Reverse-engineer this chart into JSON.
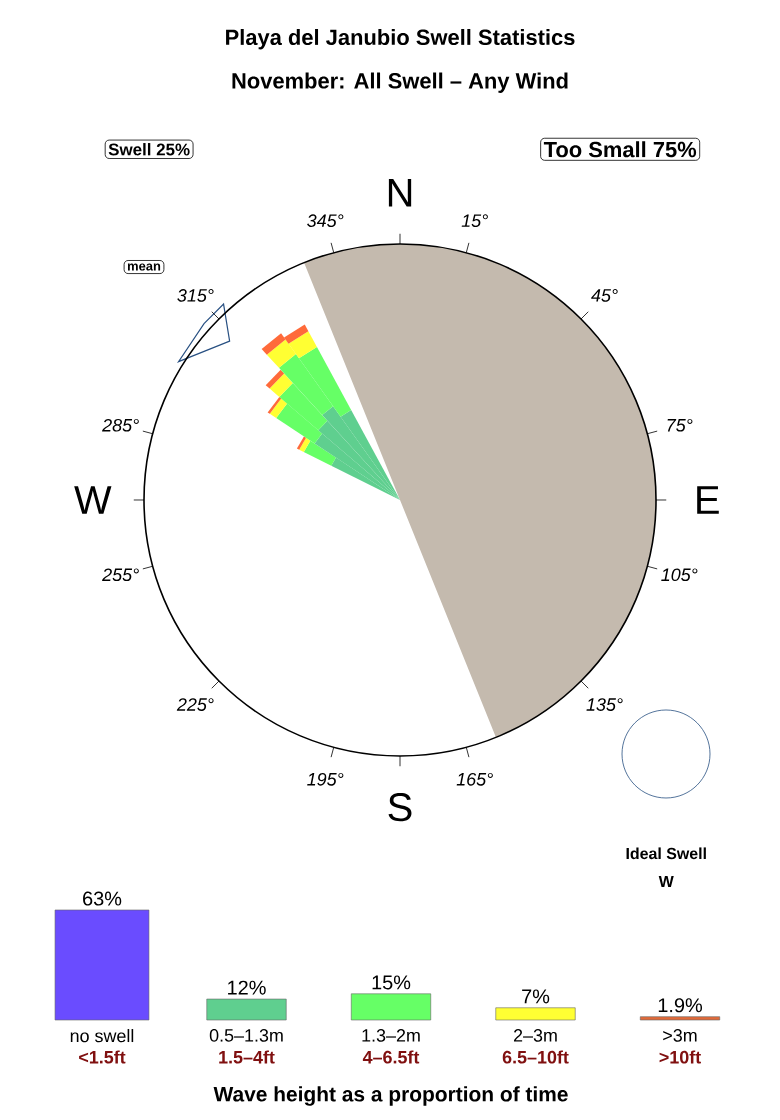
{
  "chart_data": [
    {
      "type": "other",
      "title": "Playa del Janubio Swell Statistics",
      "subtitle": "November: All Swell – Any Wind",
      "annotations": [
        "Swell 25%",
        "Too Small 75%",
        "mean",
        "Ideal Swell",
        "W",
        "N",
        "15°",
        "45°",
        "75°",
        "E",
        "105°",
        "135°",
        "165°",
        "S",
        "195°",
        "225°",
        "255°",
        "W",
        "285°",
        "315°",
        "345°"
      ]
    },
    {
      "type": "bar",
      "categories": [
        "no swell",
        "0.5–1.3m",
        "1.3–2m",
        "2–3m",
        ">3m"
      ],
      "values": [
        63,
        12,
        15,
        7,
        1.9
      ],
      "colors": [
        "#6a4cff",
        "#5fcf8f",
        "#66ff66",
        "#ffff33",
        "#e06a3a"
      ],
      "value_labels": [
        "63%",
        "12%",
        "15%",
        "7%",
        "1.9%"
      ],
      "ylim": [
        0,
        63
      ],
      "tick_labels": "x",
      "xlabel": "Wave height as a proportion of time",
      "annotations": [
        "<1.5ft",
        "1.5–4ft",
        "4–6.5ft",
        "6.5–10ft",
        ">10ft"
      ]
    }
  ]
}
